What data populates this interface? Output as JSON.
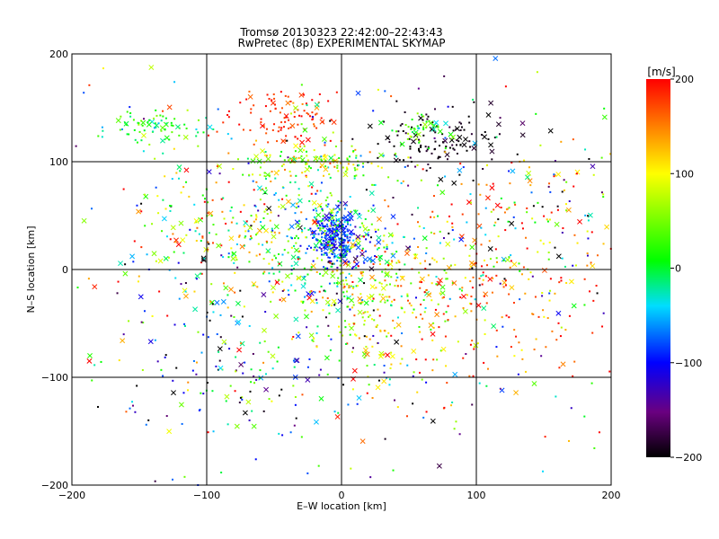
{
  "chart_data": {
    "type": "scatter",
    "title": "Tromsø 20130323 22:42:00–22:43:43",
    "subtitle": "RwPretec (8p) EXPERIMENTAL SKYMAP",
    "xlabel": "E–W location [km]",
    "ylabel": "N–S location [km]",
    "xlim": [
      -200,
      200
    ],
    "ylim": [
      -200,
      200
    ],
    "x_ticks": [
      -200,
      -100,
      0,
      100,
      200
    ],
    "y_ticks": [
      -200,
      -100,
      0,
      100,
      200
    ],
    "x_tick_labels": [
      "−200",
      "−100",
      "0",
      "100",
      "200"
    ],
    "y_tick_labels": [
      "−200",
      "−100",
      "0",
      "100",
      "200"
    ],
    "grid": true,
    "colorbar": {
      "label": "[m/s]",
      "range": [
        -200,
        200
      ],
      "ticks": [
        200,
        100,
        0,
        -100,
        -200
      ],
      "tick_labels": [
        "200",
        "100",
        "0",
        "−100",
        "−200"
      ],
      "colormap": "rainbow (black → purple → blue → cyan → green → yellow → red)",
      "placement": "right"
    },
    "clusters": [
      {
        "cx": -5,
        "cy": 30,
        "sx": 8,
        "sy": 12,
        "n": 260,
        "v": -95,
        "vs": 20
      },
      {
        "cx": -10,
        "cy": 20,
        "sx": 35,
        "sy": 35,
        "n": 320,
        "v": 0,
        "vs": 70
      },
      {
        "cx": -40,
        "cy": 140,
        "sx": 20,
        "sy": 15,
        "n": 110,
        "v": 180,
        "vs": 20
      },
      {
        "cx": 70,
        "cy": 120,
        "sx": 25,
        "sy": 15,
        "n": 130,
        "v": -195,
        "vs": 10
      },
      {
        "cx": 55,
        "cy": 130,
        "sx": 12,
        "sy": 8,
        "n": 40,
        "v": 20,
        "vs": 30
      },
      {
        "cx": -140,
        "cy": 133,
        "sx": 20,
        "sy": 7,
        "n": 80,
        "v": 10,
        "vs": 30
      },
      {
        "cx": -20,
        "cy": 100,
        "sx": 28,
        "sy": 8,
        "n": 130,
        "v": 70,
        "vs": 50
      },
      {
        "cx": 30,
        "cy": -30,
        "sx": 35,
        "sy": 30,
        "n": 230,
        "v": 90,
        "vs": 70
      },
      {
        "cx": 110,
        "cy": -30,
        "sx": 45,
        "sy": 50,
        "n": 180,
        "v": 160,
        "vs": 40
      },
      {
        "cx": -80,
        "cy": 40,
        "sx": 40,
        "sy": 30,
        "n": 180,
        "v": 80,
        "vs": 80
      },
      {
        "cx": -80,
        "cy": -80,
        "sx": 50,
        "sy": 45,
        "n": 160,
        "v": -60,
        "vs": 100
      },
      {
        "cx": 140,
        "cy": 40,
        "sx": 40,
        "sy": 40,
        "n": 140,
        "v": 40,
        "vs": 140
      },
      {
        "cx": 0,
        "cy": 0,
        "sx": 120,
        "sy": 110,
        "n": 420,
        "v": 0,
        "vs": 130
      }
    ]
  }
}
